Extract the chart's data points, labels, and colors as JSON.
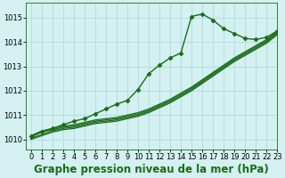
{
  "title": "Graphe pression niveau de la mer (hPa)",
  "background_color": "#d4f0f0",
  "grid_color": "#aadddd",
  "line_color": "#1a6b1a",
  "xlim": [
    -0.5,
    23
  ],
  "ylim": [
    1009.6,
    1015.6
  ],
  "yticks": [
    1010,
    1011,
    1012,
    1013,
    1014,
    1015
  ],
  "xticks": [
    0,
    1,
    2,
    3,
    4,
    5,
    6,
    7,
    8,
    9,
    10,
    11,
    12,
    13,
    14,
    15,
    16,
    17,
    18,
    19,
    20,
    21,
    22,
    23
  ],
  "series": [
    {
      "data": [
        1010.15,
        1010.35,
        1010.45,
        1010.55,
        1010.6,
        1010.7,
        1010.8,
        1010.85,
        1010.9,
        1011.0,
        1011.1,
        1011.25,
        1011.45,
        1011.65,
        1011.9,
        1012.15,
        1012.45,
        1012.75,
        1013.05,
        1013.35,
        1013.6,
        1013.85,
        1014.1,
        1014.45
      ],
      "marker": false,
      "linewidth": 0.9
    },
    {
      "data": [
        1010.1,
        1010.3,
        1010.4,
        1010.5,
        1010.55,
        1010.65,
        1010.75,
        1010.8,
        1010.85,
        1010.95,
        1011.05,
        1011.2,
        1011.4,
        1011.6,
        1011.85,
        1012.1,
        1012.4,
        1012.7,
        1013.0,
        1013.3,
        1013.55,
        1013.8,
        1014.05,
        1014.4
      ],
      "marker": false,
      "linewidth": 0.9
    },
    {
      "data": [
        1010.05,
        1010.2,
        1010.35,
        1010.45,
        1010.5,
        1010.6,
        1010.7,
        1010.75,
        1010.8,
        1010.9,
        1011.0,
        1011.15,
        1011.35,
        1011.55,
        1011.8,
        1012.05,
        1012.35,
        1012.65,
        1012.95,
        1013.25,
        1013.5,
        1013.75,
        1014.0,
        1014.35
      ],
      "marker": false,
      "linewidth": 0.9
    },
    {
      "data": [
        1010.0,
        1010.15,
        1010.3,
        1010.4,
        1010.45,
        1010.55,
        1010.65,
        1010.7,
        1010.75,
        1010.85,
        1010.95,
        1011.1,
        1011.3,
        1011.5,
        1011.75,
        1012.0,
        1012.3,
        1012.6,
        1012.9,
        1013.2,
        1013.45,
        1013.7,
        1013.95,
        1014.3
      ],
      "marker": false,
      "linewidth": 0.9
    },
    {
      "data": [
        1010.15,
        1010.3,
        1010.45,
        1010.6,
        1010.75,
        1010.85,
        1011.05,
        1011.25,
        1011.45,
        1011.6,
        1012.05,
        1012.7,
        1013.05,
        1013.35,
        1013.55,
        1015.05,
        1015.15,
        1014.9,
        1014.55,
        1014.35,
        1014.15,
        1014.1,
        1014.2,
        1014.45
      ],
      "marker": true,
      "linewidth": 1.0
    }
  ],
  "marker": "D",
  "marker_size": 2.5,
  "title_fontsize": 8.5,
  "tick_fontsize": 6
}
